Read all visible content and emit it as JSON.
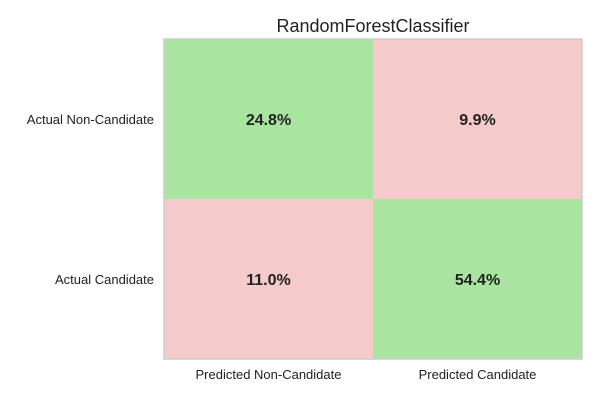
{
  "chart_data": {
    "type": "heatmap",
    "title": "RandomForestClassifier",
    "row_labels": [
      "Actual Non-Candidate",
      "Actual Candidate"
    ],
    "col_labels": [
      "Predicted Non-Candidate",
      "Predicted Candidate"
    ],
    "values": [
      [
        24.8,
        9.9
      ],
      [
        11.0,
        54.4
      ]
    ],
    "cell_labels": [
      [
        "24.8%",
        "9.9%"
      ],
      [
        "11.0%",
        "54.4%"
      ]
    ],
    "unit": "%",
    "grid": false,
    "colors": {
      "correct": "#a9e5a0",
      "incorrect": "#f4caca",
      "frame": "#cccccc",
      "text": "#222222"
    }
  }
}
